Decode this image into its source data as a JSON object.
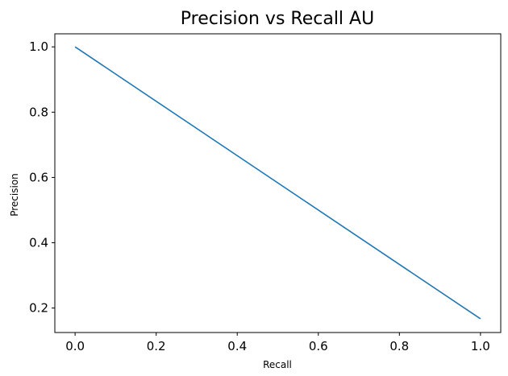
{
  "chart_data": {
    "type": "line",
    "title": "Precision vs Recall AU",
    "xlabel": "Recall",
    "ylabel": "Precision",
    "xlim": [
      -0.05,
      1.05
    ],
    "ylim": [
      0.125,
      1.04
    ],
    "xticks": [
      0.0,
      0.2,
      0.4,
      0.6,
      0.8,
      1.0
    ],
    "xtick_labels": [
      "0.0",
      "0.2",
      "0.4",
      "0.6",
      "0.8",
      "1.0"
    ],
    "yticks": [
      0.2,
      0.4,
      0.6,
      0.8,
      1.0
    ],
    "ytick_labels": [
      "0.2",
      "0.4",
      "0.6",
      "0.8",
      "1.0"
    ],
    "grid": false,
    "series": [
      {
        "x": [
          0.0,
          1.0
        ],
        "y": [
          1.0,
          0.167
        ],
        "color": "#1f77b4"
      }
    ]
  }
}
